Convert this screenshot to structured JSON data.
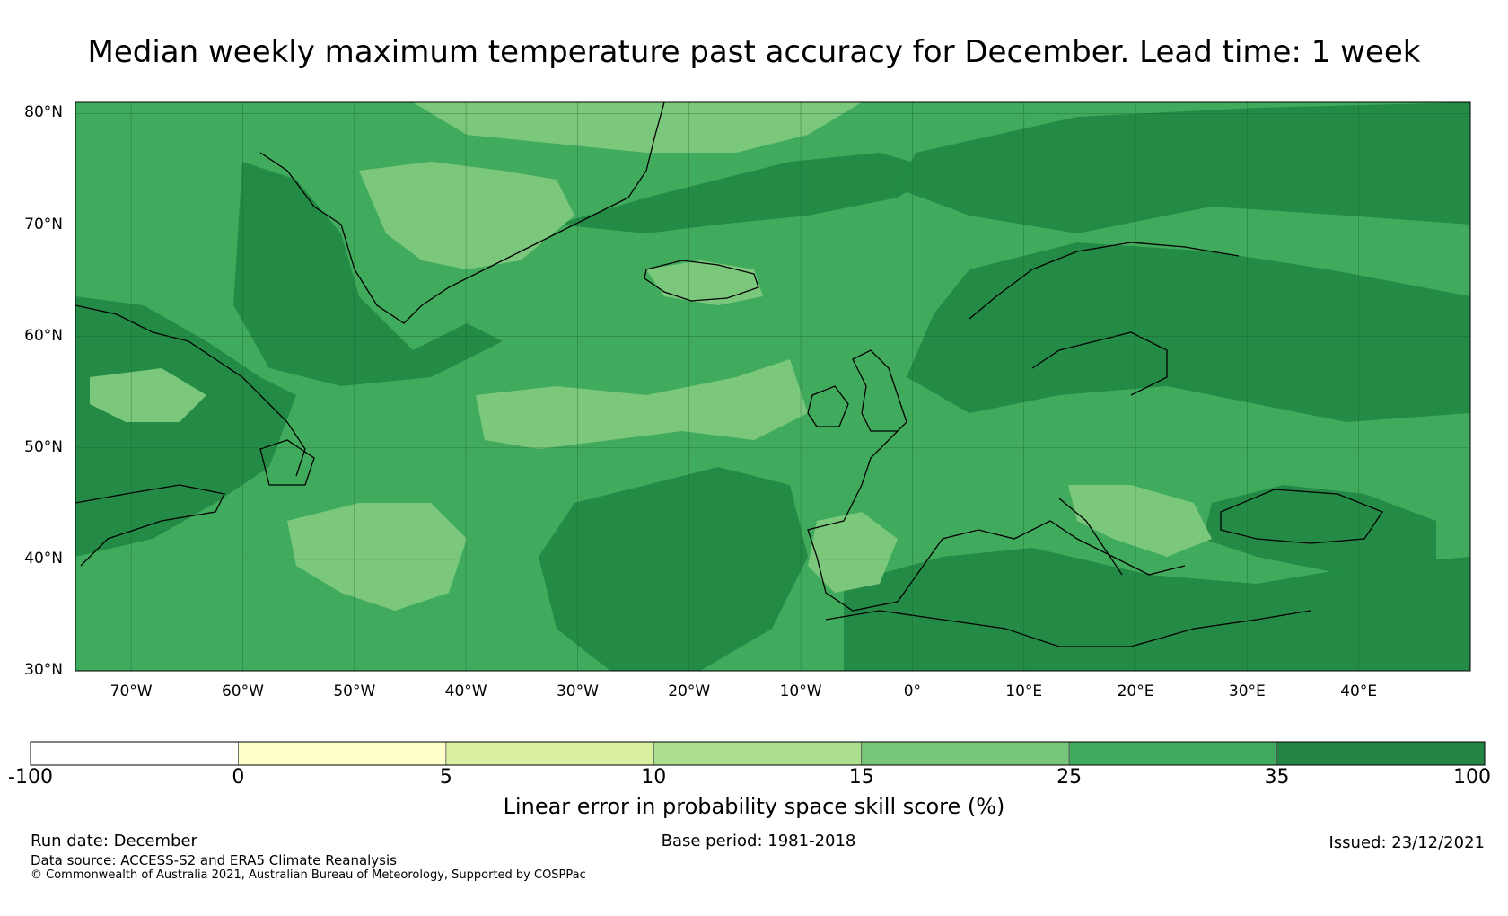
{
  "title": "Median weekly maximum temperature past accuracy for December. Lead time: 1 week",
  "map": {
    "lat_labels": [
      "80°N",
      "70°N",
      "60°N",
      "50°N",
      "40°N",
      "30°N"
    ],
    "lon_labels": [
      "70°W",
      "60°W",
      "50°W",
      "40°W",
      "30°W",
      "20°W",
      "10°W",
      "0°",
      "10°E",
      "20°E",
      "30°E",
      "40°E"
    ],
    "extent": {
      "lon": [
        -75,
        50
      ],
      "lat": [
        30,
        81
      ]
    },
    "colors": {
      "c15_25": "#7bc87c",
      "c25_35": "#41ab5d",
      "c35_100": "#238b45",
      "c10_15": "#addd8e",
      "c5_10": "#d9f0a3",
      "coast": "#000000",
      "grid": "#1a5c2e"
    }
  },
  "colorbar": {
    "ticks": [
      "-100",
      "0",
      "5",
      "10",
      "15",
      "25",
      "35",
      "100"
    ],
    "colors": [
      "#ffffff",
      "#ffffcc",
      "#d9f0a3",
      "#addd8e",
      "#78c679",
      "#41ab5d",
      "#238443"
    ],
    "title": "Linear error in probability space skill score (%)"
  },
  "footer": {
    "run_date": "Run date: December",
    "base_period": "Base period: 1981-2018",
    "issued": "Issued: 23/12/2021",
    "data_source": "Data source: ACCESS-S2 and ERA5 Climate Reanalysis",
    "copyright": "© Commonwealth of Australia 2021, Australian Bureau of Meteorology, Supported by COSPPac"
  }
}
